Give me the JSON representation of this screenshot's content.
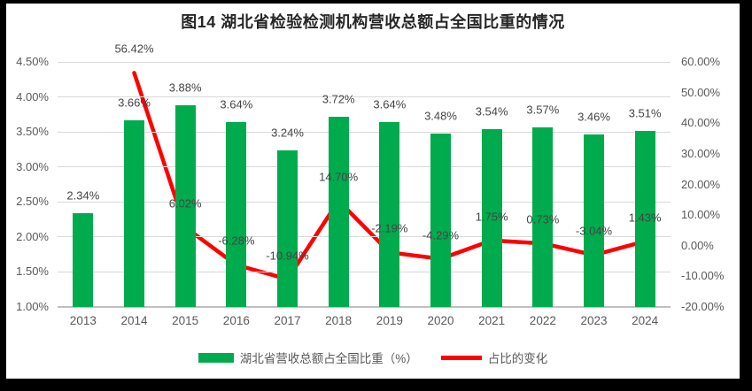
{
  "chart_data": {
    "type": "bar+line",
    "title": "图14 湖北省检验检测机构营收总额占全国比重的情况",
    "categories": [
      "2013",
      "2014",
      "2015",
      "2016",
      "2017",
      "2018",
      "2019",
      "2020",
      "2021",
      "2022",
      "2023",
      "2024"
    ],
    "series": [
      {
        "name": "湖北省营收总额占全国比重（%）",
        "type": "bar",
        "axis": "left",
        "color": "#00AB4E",
        "values": [
          2.34,
          3.66,
          3.88,
          3.64,
          3.24,
          3.72,
          3.64,
          3.48,
          3.54,
          3.57,
          3.46,
          3.51
        ],
        "labels": [
          "2.34%",
          "3.66%",
          "3.88%",
          "3.64%",
          "3.24%",
          "3.72%",
          "3.64%",
          "3.48%",
          "3.54%",
          "3.57%",
          "3.46%",
          "3.51%"
        ]
      },
      {
        "name": "占比的变化",
        "type": "line",
        "axis": "right",
        "color": "#FF0000",
        "values": [
          null,
          56.42,
          6.02,
          -6.28,
          -10.94,
          14.7,
          -2.19,
          -4.29,
          1.75,
          0.73,
          -3.04,
          1.43
        ],
        "labels": [
          null,
          "56.42%",
          "6.02%",
          "-6.28%",
          "-10.94%",
          "14.70%",
          "-2.19%",
          "-4.29%",
          "1.75%",
          "0.73%",
          "-3.04%",
          "1.43%"
        ]
      }
    ],
    "left_axis": {
      "min": 1.0,
      "max": 4.5,
      "step": 0.5,
      "ticks": [
        "4.50%",
        "4.00%",
        "3.50%",
        "3.00%",
        "2.50%",
        "2.00%",
        "1.50%",
        "1.00%"
      ]
    },
    "right_axis": {
      "min": -20,
      "max": 60,
      "step": 10,
      "ticks": [
        "60.00%",
        "50.00%",
        "40.00%",
        "30.00%",
        "20.00%",
        "10.00%",
        "0.00%",
        "-10.00%",
        "-20.00%"
      ]
    },
    "legend_position": "bottom",
    "grid": true,
    "colors": {
      "bar": "#00AB4E",
      "line": "#FF0000",
      "gridline": "#D9D9D9",
      "axis_line": "#BFBFBF",
      "tick_text": "#595959",
      "label_text": "#444444",
      "title_text": "#262626",
      "frame": "#000000"
    }
  }
}
